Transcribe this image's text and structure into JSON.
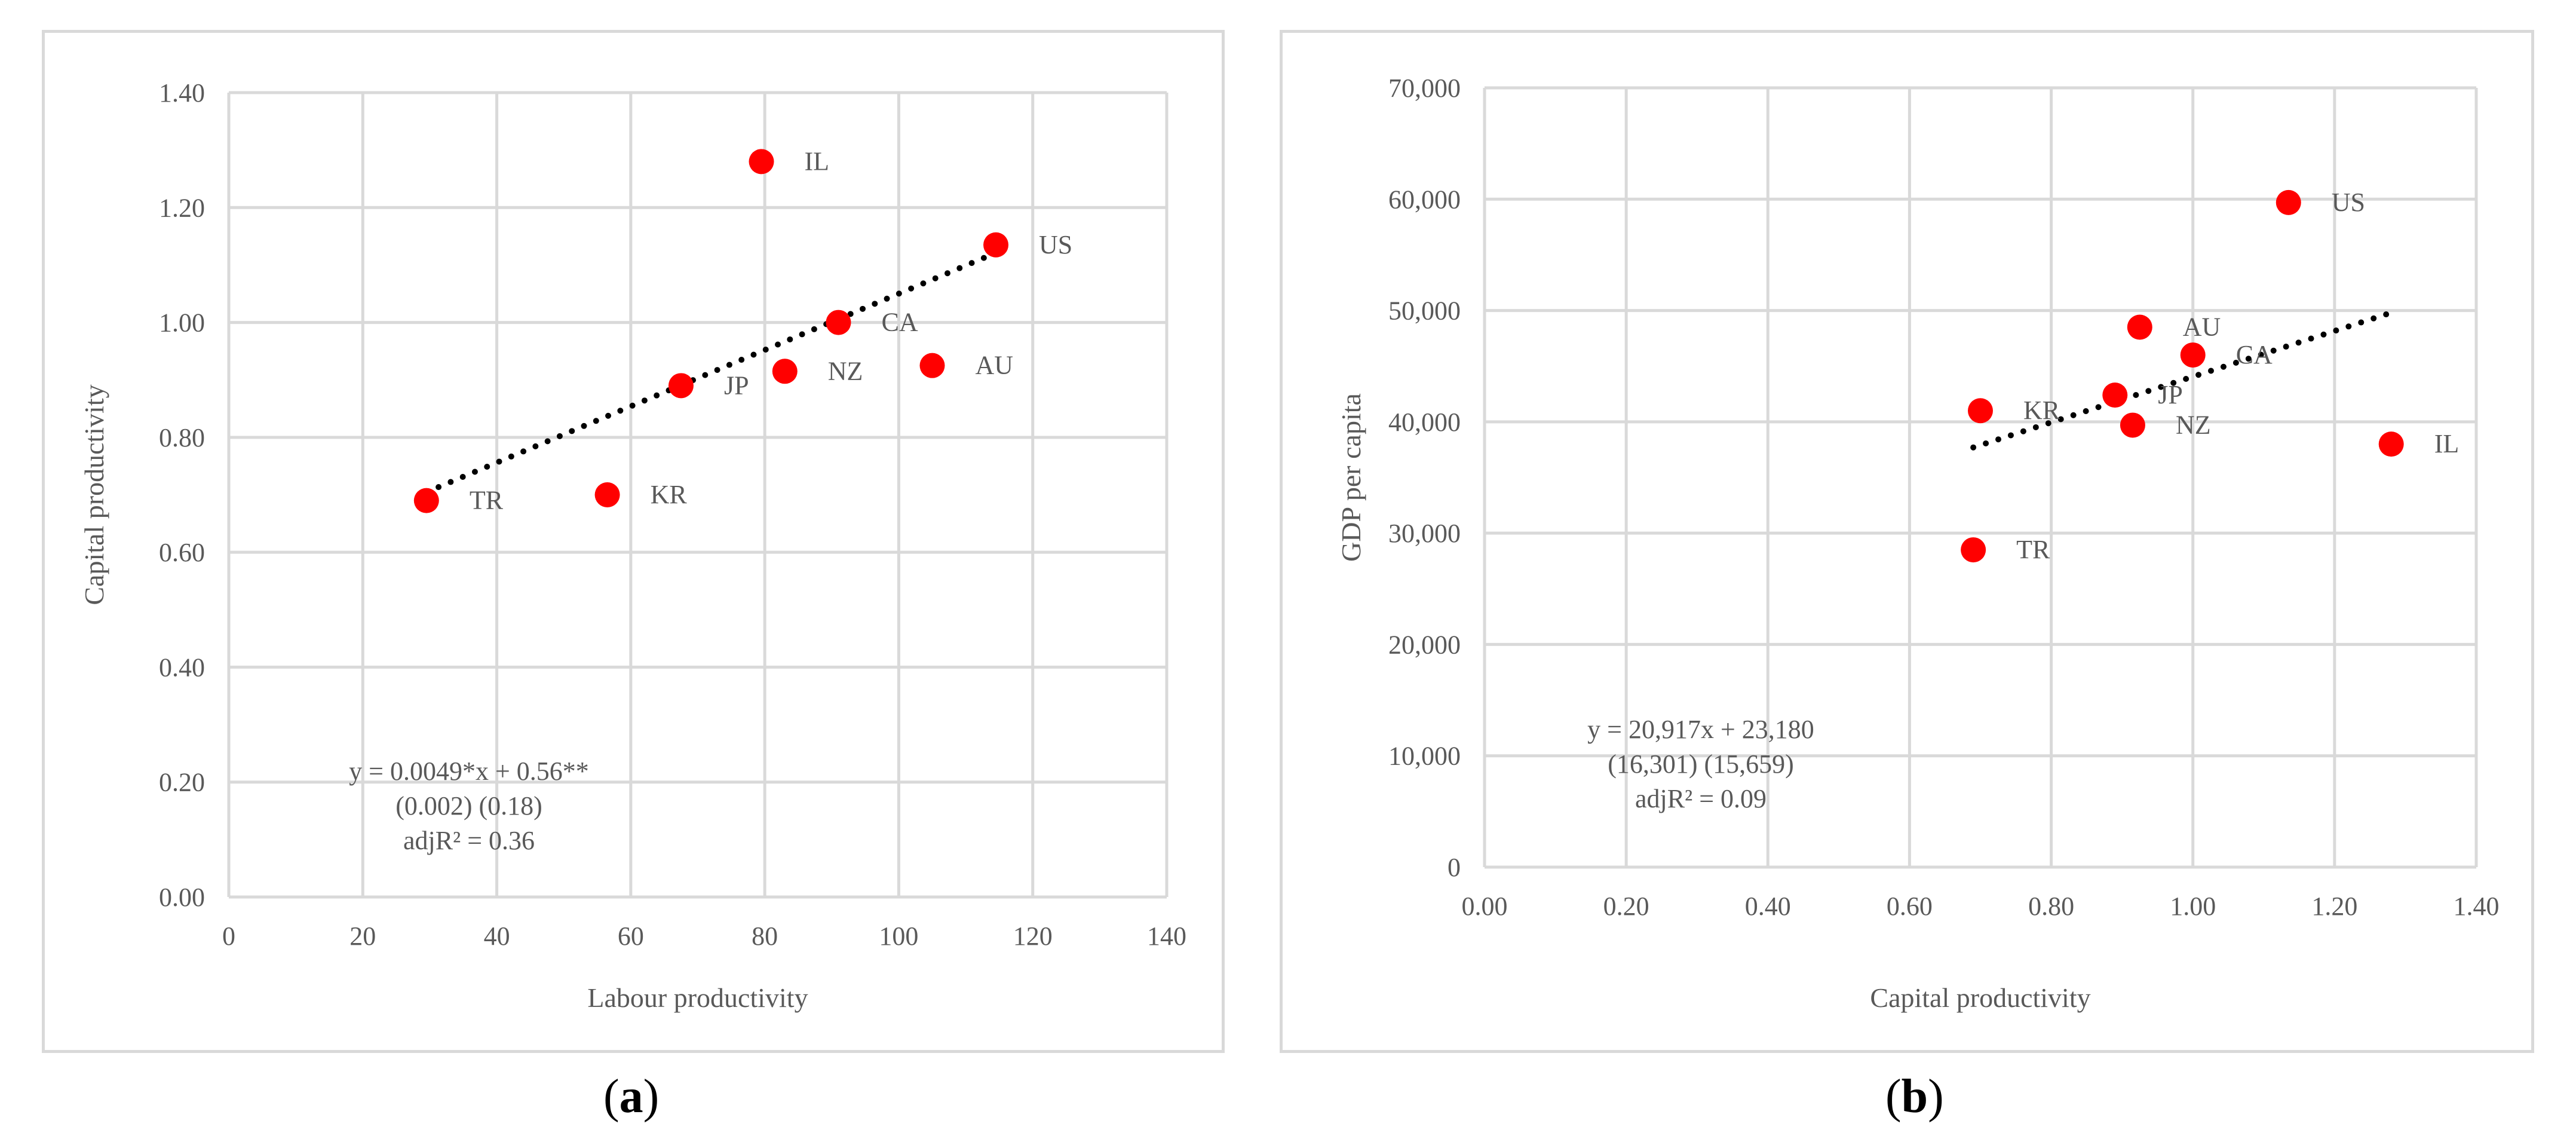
{
  "colors": {
    "point": "#ff0000",
    "grid": "#d9d9d9",
    "trend": "#000000",
    "text": "#595959"
  },
  "panels": [
    {
      "id": "a",
      "label": "a"
    },
    {
      "id": "b",
      "label": "b"
    }
  ],
  "chart_data": [
    {
      "type": "scatter",
      "panel": "a",
      "xlabel": "Labour productivity",
      "ylabel": "Capital productivity",
      "xlim": [
        0,
        140
      ],
      "ylim": [
        0,
        1.4
      ],
      "xticks": [
        0,
        20,
        40,
        60,
        80,
        100,
        120,
        140
      ],
      "yticks": [
        0,
        0.2,
        0.4,
        0.6,
        0.8,
        1.0,
        1.2,
        1.4
      ],
      "xtick_labels": [
        "0",
        "20",
        "40",
        "60",
        "80",
        "100",
        "120",
        "140"
      ],
      "ytick_labels": [
        "0.00",
        "0.20",
        "0.40",
        "0.60",
        "0.80",
        "1.00",
        "1.20",
        "1.40"
      ],
      "grid": true,
      "points": [
        {
          "label": "IL",
          "x": 79.5,
          "y": 1.28
        },
        {
          "label": "US",
          "x": 114.5,
          "y": 1.135
        },
        {
          "label": "CA",
          "x": 91,
          "y": 1.0
        },
        {
          "label": "AU",
          "x": 105,
          "y": 0.925
        },
        {
          "label": "NZ",
          "x": 83,
          "y": 0.915
        },
        {
          "label": "JP",
          "x": 67.5,
          "y": 0.89
        },
        {
          "label": "KR",
          "x": 56.5,
          "y": 0.7
        },
        {
          "label": "TR",
          "x": 29.5,
          "y": 0.69
        }
      ],
      "trendline": {
        "x": [
          29.5,
          114.5
        ],
        "y": [
          0.7046,
          1.1211
        ],
        "style": "dotted"
      },
      "annotation": [
        "y = 0.0049*x + 0.56**",
        "(0.002)        (0.18)",
        "adjR² = 0.36"
      ]
    },
    {
      "type": "scatter",
      "panel": "b",
      "xlabel": "Capital productivity",
      "ylabel": "GDP per capita",
      "xlim": [
        0,
        1.4
      ],
      "ylim": [
        0,
        70000
      ],
      "xticks": [
        0,
        0.2,
        0.4,
        0.6,
        0.8,
        1.0,
        1.2,
        1.4
      ],
      "yticks": [
        0,
        10000,
        20000,
        30000,
        40000,
        50000,
        60000,
        70000
      ],
      "xtick_labels": [
        "0.00",
        "0.20",
        "0.40",
        "0.60",
        "0.80",
        "1.00",
        "1.20",
        "1.40"
      ],
      "ytick_labels": [
        "0",
        "10,000",
        "20,000",
        "30,000",
        "40,000",
        "50,000",
        "60,000",
        "70,000"
      ],
      "grid": true,
      "points": [
        {
          "label": "US",
          "x": 1.135,
          "y": 59700
        },
        {
          "label": "AU",
          "x": 0.925,
          "y": 48500
        },
        {
          "label": "CA",
          "x": 1.0,
          "y": 46000
        },
        {
          "label": "JP",
          "x": 0.89,
          "y": 42400
        },
        {
          "label": "KR",
          "x": 0.7,
          "y": 41000
        },
        {
          "label": "NZ",
          "x": 0.915,
          "y": 39700
        },
        {
          "label": "IL",
          "x": 1.28,
          "y": 38000
        },
        {
          "label": "TR",
          "x": 0.69,
          "y": 28500
        }
      ],
      "trendline": {
        "x": [
          0.69,
          1.28
        ],
        "y": [
          37700,
          49800
        ],
        "style": "dotted"
      },
      "annotation": [
        "y = 20,917x + 23,180",
        "(16,301) (15,659)",
        "adjR² = 0.09"
      ]
    }
  ]
}
